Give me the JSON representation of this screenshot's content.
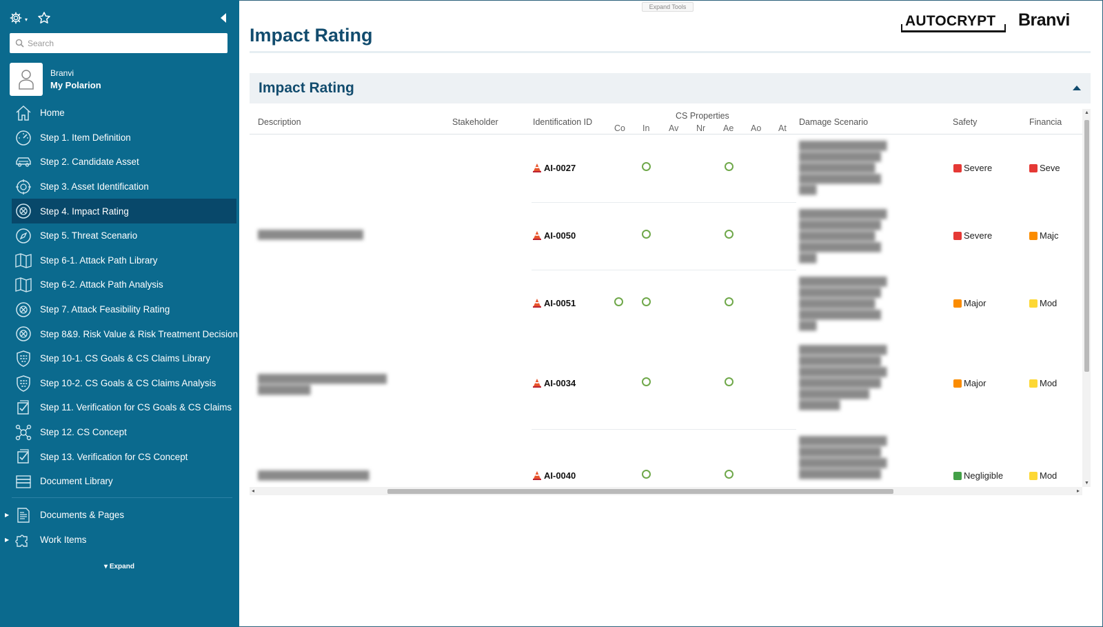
{
  "sidebar": {
    "search_placeholder": "Search",
    "user_name": "Branvi",
    "my_polarion": "My Polarion",
    "expand_label": "Expand",
    "nav": [
      {
        "label": "Home",
        "icon": "home-icon"
      },
      {
        "label": "Step 1. Item Definition",
        "icon": "dashboard-gauge-icon"
      },
      {
        "label": "Step 2. Candidate Asset",
        "icon": "car-icon"
      },
      {
        "label": "Step 3. Asset Identification",
        "icon": "asset-target-icon"
      },
      {
        "label": "Step 4. Impact Rating",
        "icon": "impact-target-icon",
        "active": true
      },
      {
        "label": "Step 5. Threat Scenario",
        "icon": "compass-icon"
      },
      {
        "label": "Step 6-1. Attack Path Library",
        "icon": "map-icon"
      },
      {
        "label": "Step 6-2. Attack Path Analysis",
        "icon": "map-icon"
      },
      {
        "label": "Step 7. Attack Feasibility Rating",
        "icon": "feasibility-target-icon"
      },
      {
        "label": "Step 8&9. Risk Value & Risk Treatment Decision",
        "icon": "risk-target-icon"
      },
      {
        "label": "Step 10-1. CS Goals & CS Claims Library",
        "icon": "shield-grid-icon"
      },
      {
        "label": "Step 10-2. CS Goals & CS Claims Analysis",
        "icon": "shield-grid-icon"
      },
      {
        "label": "Step 11. Verification for CS Goals & CS Claims",
        "icon": "checklist-icon"
      },
      {
        "label": "Step 12. CS Concept",
        "icon": "concept-nodes-icon"
      },
      {
        "label": "Step 13. Verification for CS Concept",
        "icon": "checklist-icon"
      },
      {
        "label": "Document Library",
        "icon": "library-icon"
      }
    ],
    "tree": [
      {
        "label": "Documents & Pages",
        "icon": "documents-icon"
      },
      {
        "label": "Work Items",
        "icon": "puzzle-icon"
      }
    ]
  },
  "main": {
    "expand_tools": "Expand Tools",
    "logo_autocrypt": "AUTOCRYPT",
    "logo_branvi": "Branvi",
    "page_title": "Impact Rating",
    "section_title": "Impact Rating",
    "columns": {
      "description": "Description",
      "stakeholder": "Stakeholder",
      "identification_id": "Identification ID",
      "cs_properties": "CS Properties",
      "cs_sub": [
        "Co",
        "In",
        "Av",
        "Nr",
        "Ae",
        "Ao",
        "At"
      ],
      "damage_scenario": "Damage Scenario",
      "safety": "Safety",
      "financial": "Financia"
    },
    "rows": [
      {
        "id": "AI-0027",
        "props": [
          "In",
          "Ae"
        ],
        "safety": "Severe",
        "safety_color": "#e53935",
        "financial": "Seve",
        "financial_color": "#e53935"
      },
      {
        "id": "AI-0050",
        "props": [
          "In",
          "Ae"
        ],
        "safety": "Severe",
        "safety_color": "#e53935",
        "financial": "Majc",
        "financial_color": "#fb8c00"
      },
      {
        "id": "AI-0051",
        "props": [
          "Co",
          "In",
          "Ae"
        ],
        "safety": "Major",
        "safety_color": "#fb8c00",
        "financial": "Mod",
        "financial_color": "#fdd835"
      },
      {
        "id": "AI-0034",
        "props": [
          "In",
          "Ae"
        ],
        "safety": "Major",
        "safety_color": "#fb8c00",
        "financial": "Mod",
        "financial_color": "#fdd835"
      },
      {
        "id": "AI-0040",
        "props": [
          "In",
          "Ae"
        ],
        "safety": "Negligible",
        "safety_color": "#43a047",
        "financial": "Mod",
        "financial_color": "#fdd835"
      }
    ]
  }
}
